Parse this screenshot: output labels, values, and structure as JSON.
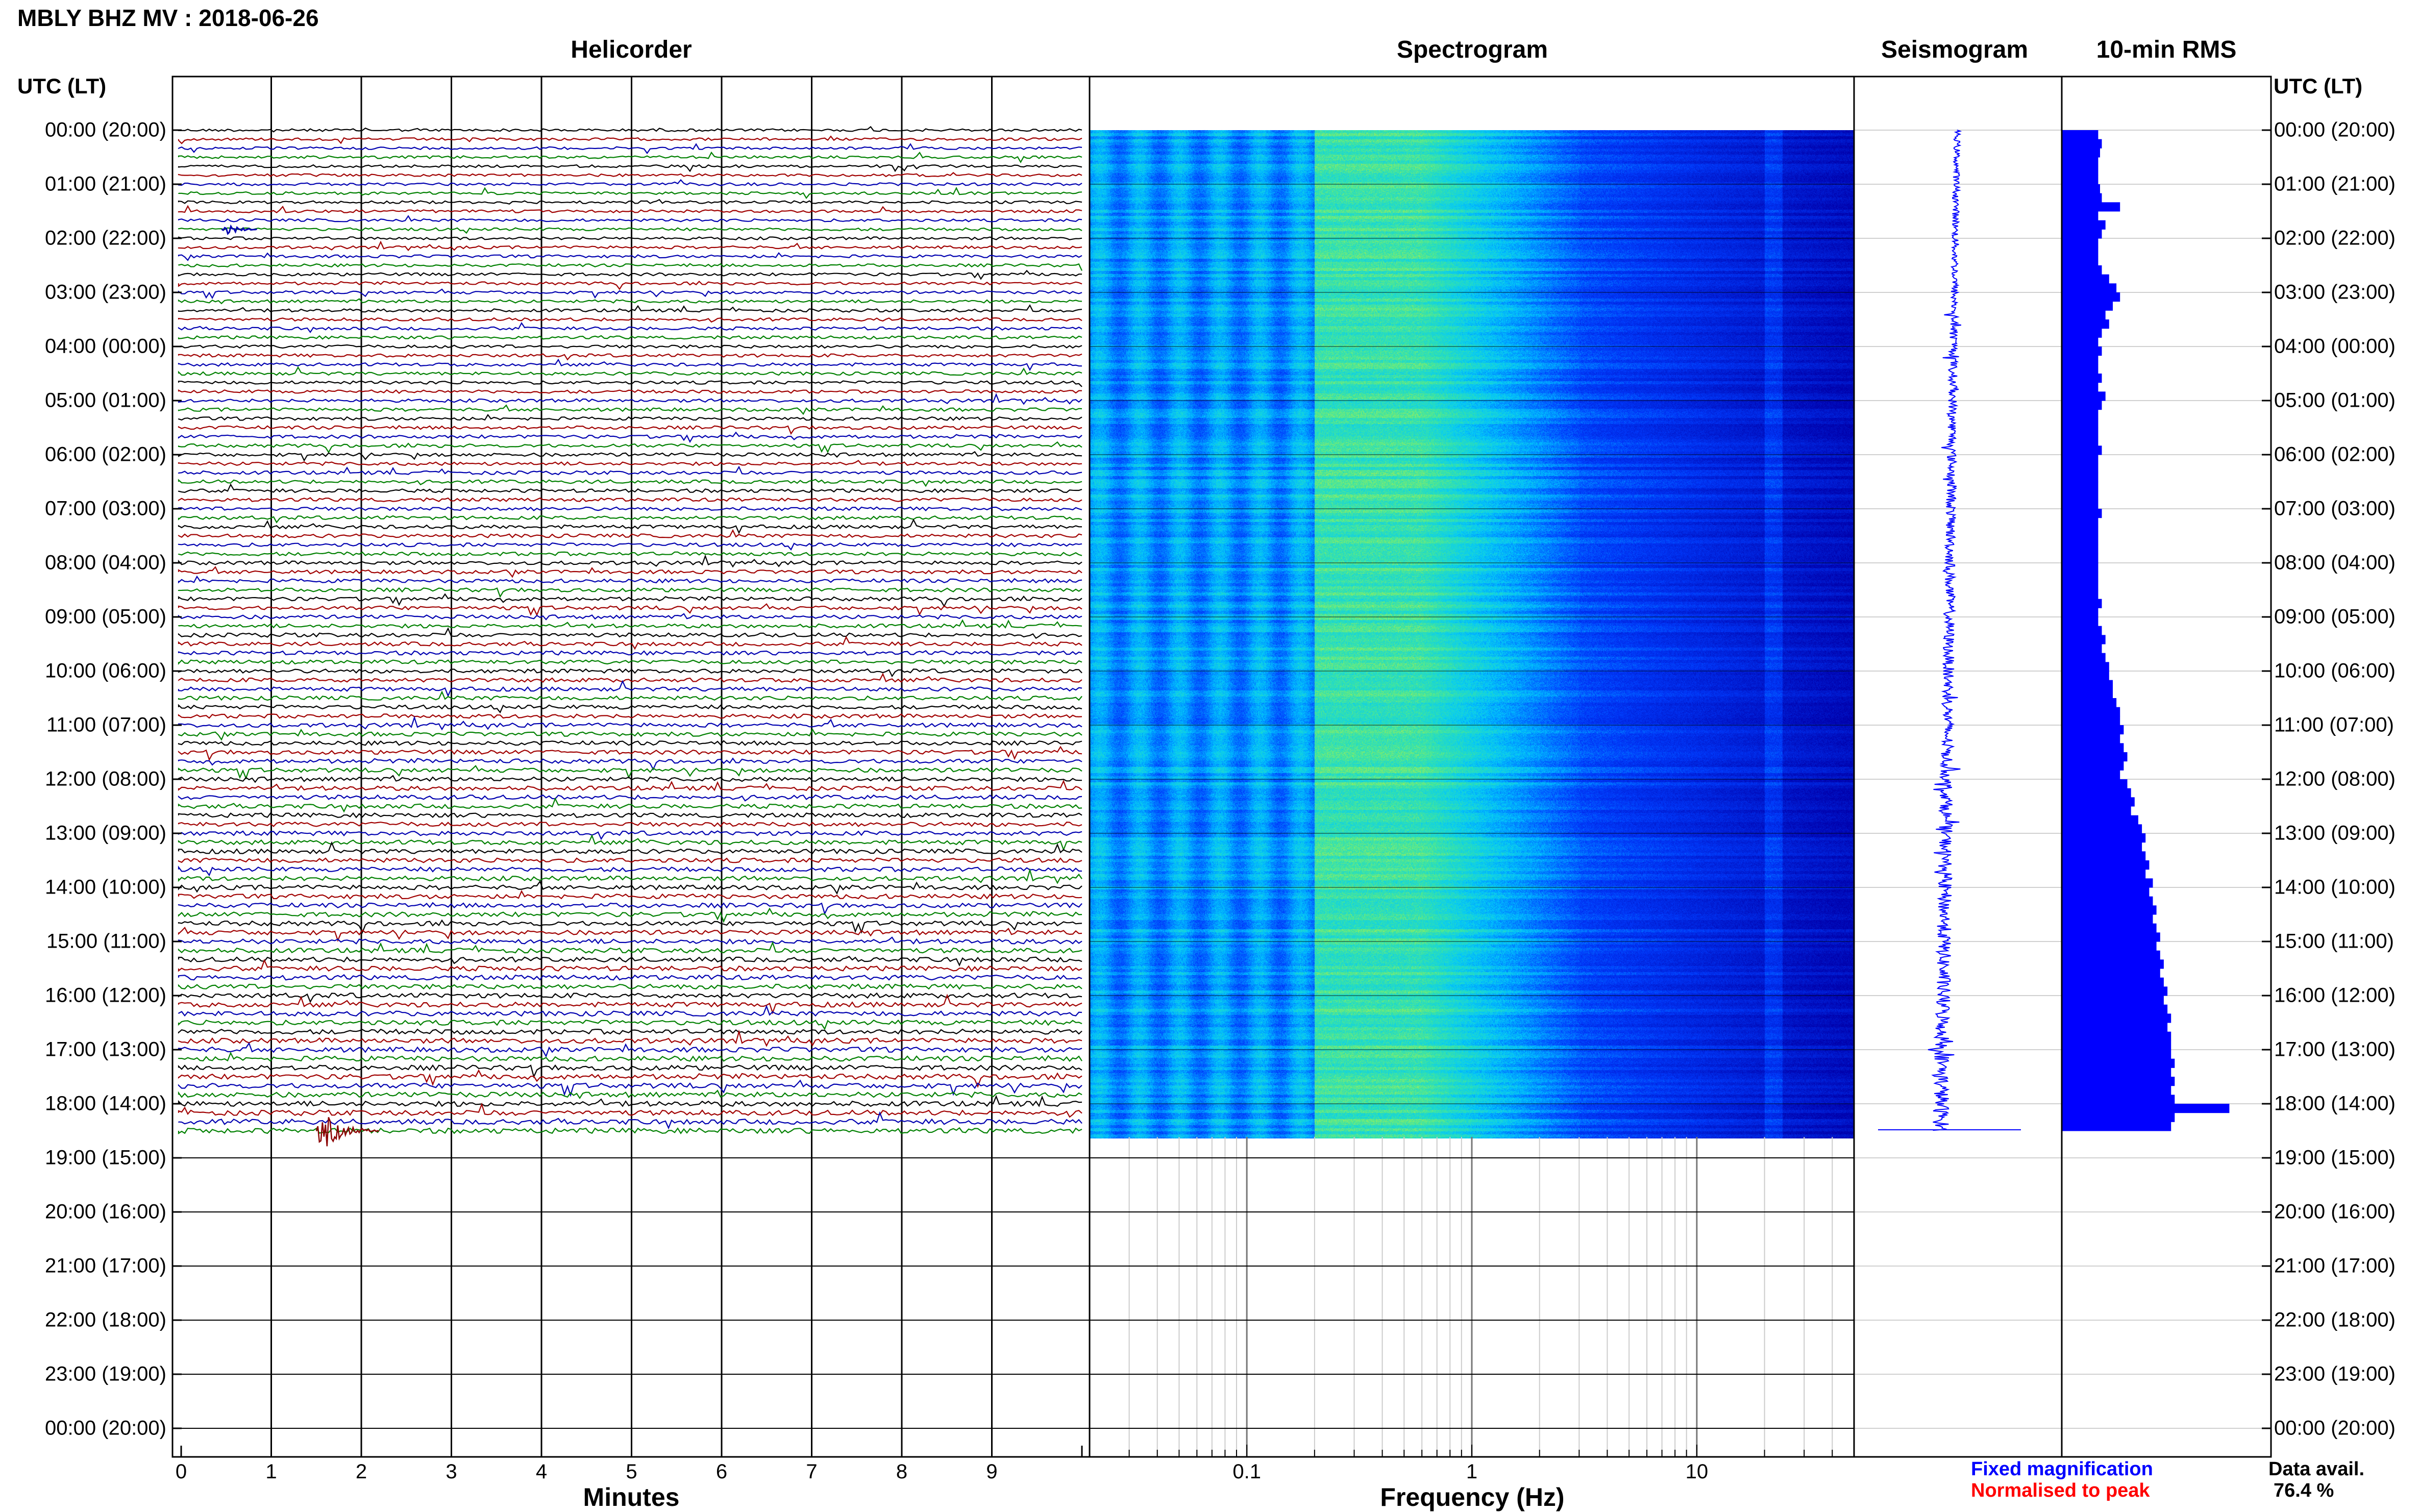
{
  "header": {
    "title": "MBLY BHZ MV : 2018-06-26"
  },
  "panels": {
    "helicorder": "Helicorder",
    "spectrogram": "Spectrogram",
    "seismogram": "Seismogram",
    "rms": "10-min RMS"
  },
  "axes": {
    "utc_header_left": "UTC (LT)",
    "utc_header_right": "UTC (LT)",
    "x_minutes_label": "Minutes",
    "x_frequency_label": "Frequency (Hz)"
  },
  "legend": {
    "fixed": "Fixed magnification",
    "normalised": "Normalised to peak",
    "fixed_color": "#0000ff",
    "normalised_color": "#ff0000",
    "data_avail_label": "Data avail.",
    "data_avail_value": "76.4 %"
  },
  "colors": {
    "trace_cycle": [
      "#000000",
      "#a00000",
      "#0000b0",
      "#008000"
    ],
    "rms_bar": "#0000ff",
    "seis": "#0000ff"
  },
  "chart_data": {
    "type": "helicorder",
    "time_labels": [
      "00:00 (20:00)",
      "01:00 (21:00)",
      "02:00 (22:00)",
      "03:00 (23:00)",
      "04:00 (00:00)",
      "05:00 (01:00)",
      "06:00 (02:00)",
      "07:00 (03:00)",
      "08:00 (04:00)",
      "09:00 (05:00)",
      "10:00 (06:00)",
      "11:00 (07:00)",
      "12:00 (08:00)",
      "13:00 (09:00)",
      "14:00 (10:00)",
      "15:00 (11:00)",
      "16:00 (12:00)",
      "17:00 (13:00)",
      "18:00 (14:00)",
      "19:00 (15:00)",
      "20:00 (16:00)",
      "21:00 (17:00)",
      "22:00 (18:00)",
      "23:00 (19:00)",
      "00:00 (20:00)"
    ],
    "minutes_ticks": [
      "0",
      "1",
      "2",
      "3",
      "4",
      "5",
      "6",
      "7",
      "8",
      "9"
    ],
    "frequency_ticks": [
      "0.1",
      "1",
      "10"
    ],
    "frequency_range_hz": [
      0.02,
      50
    ],
    "hours_with_data": 18.5,
    "traces_per_hour": 6,
    "rms_10min": [
      1.0,
      1.1,
      1.05,
      1.0,
      1.0,
      1.0,
      1.05,
      1.1,
      1.6,
      1.0,
      1.2,
      1.1,
      1.0,
      1.0,
      1.0,
      1.1,
      1.3,
      1.5,
      1.6,
      1.4,
      1.2,
      1.3,
      1.1,
      1.0,
      1.1,
      1.0,
      1.0,
      1.1,
      1.0,
      1.2,
      1.1,
      1.0,
      1.0,
      1.0,
      1.0,
      1.1,
      1.0,
      1.0,
      1.0,
      1.0,
      1.0,
      1.0,
      1.1,
      1.0,
      1.0,
      1.0,
      1.0,
      1.0,
      1.0,
      1.0,
      1.0,
      1.0,
      1.1,
      1.0,
      1.0,
      1.1,
      1.2,
      1.1,
      1.2,
      1.3,
      1.3,
      1.4,
      1.4,
      1.5,
      1.6,
      1.6,
      1.7,
      1.6,
      1.7,
      1.8,
      1.7,
      1.6,
      1.8,
      1.9,
      2.0,
      1.9,
      2.1,
      2.2,
      2.3,
      2.2,
      2.3,
      2.4,
      2.3,
      2.5,
      2.4,
      2.5,
      2.6,
      2.5,
      2.6,
      2.7,
      2.6,
      2.7,
      2.8,
      2.7,
      2.8,
      2.9,
      2.8,
      2.9,
      3.0,
      2.9,
      3.0,
      3.0,
      3.0,
      3.1,
      3.0,
      3.1,
      3.0,
      3.1,
      4.6,
      3.1,
      3.0
    ]
  }
}
